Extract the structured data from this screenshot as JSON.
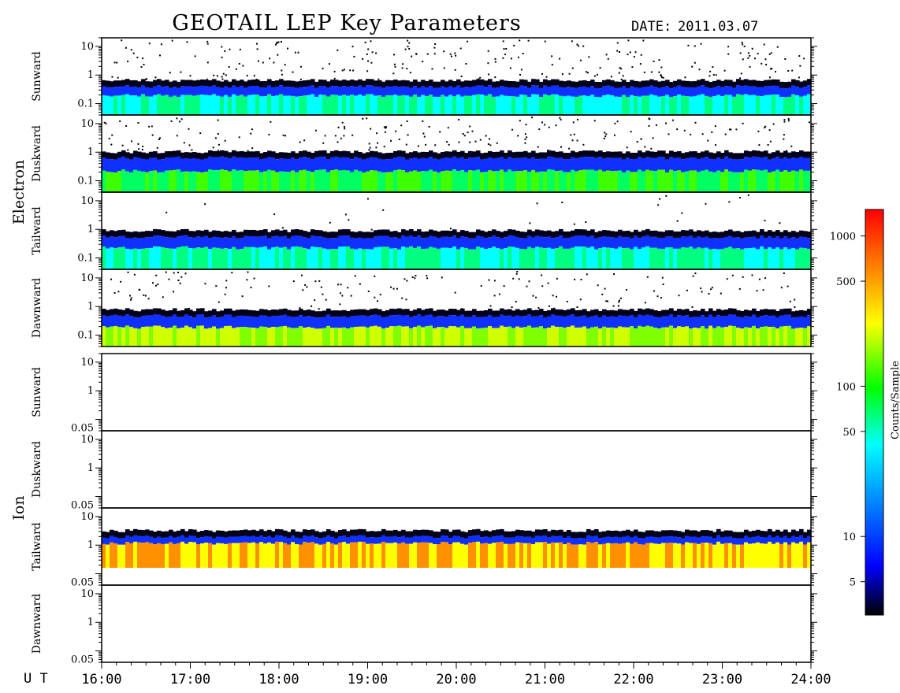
{
  "title": "GEOTAIL LEP Key Parameters",
  "date_label": "DATE:",
  "date_value": "2011.03.07",
  "colors": {
    "background": "#ffffff",
    "frame": "#000000",
    "scale": [
      "#000000",
      "#0000ff",
      "#00ffff",
      "#00ff00",
      "#ffff00",
      "#ff8000",
      "#ff0000"
    ]
  },
  "chart_data": {
    "type": "heatmap",
    "x_label": "U T",
    "x_tick_labels": [
      "16:00",
      "17:00",
      "18:00",
      "19:00",
      "20:00",
      "21:00",
      "22:00",
      "23:00",
      "24:00"
    ],
    "xlim": [
      "16:00",
      "24:00"
    ],
    "y_scale": "log",
    "groups": [
      {
        "name": "Electron",
        "ylim": [
          0.04,
          20
        ],
        "y_tick_labels": [
          "10",
          "1",
          "0.1"
        ],
        "panels": [
          {
            "name": "Sunward",
            "dominant_level": "cyan-green",
            "band_center": 0.12,
            "band_top": 0.5,
            "scatter_density": 0.09
          },
          {
            "name": "Duskward",
            "dominant_level": "green",
            "band_center": 0.1,
            "band_top": 0.8,
            "scatter_density": 0.07
          },
          {
            "name": "Tailward",
            "dominant_level": "cyan-green",
            "band_center": 0.12,
            "band_top": 0.7,
            "scatter_density": 0.01
          },
          {
            "name": "Dawnward",
            "dominant_level": "green-yellow",
            "band_center": 0.1,
            "band_top": 0.6,
            "scatter_density": 0.06
          }
        ]
      },
      {
        "name": "Ion",
        "ylim": [
          0.04,
          20
        ],
        "y_tick_labels": [
          "10",
          "1",
          "0.05"
        ],
        "panels": [
          {
            "name": "Sunward",
            "dominant_level": "none",
            "band_center": 0,
            "band_top": 0,
            "scatter_density": 0.0
          },
          {
            "name": "Duskward",
            "dominant_level": "none",
            "band_center": 0,
            "band_top": 0,
            "scatter_density": 0.0
          },
          {
            "name": "Tailward",
            "dominant_level": "yellow-orange",
            "band_center": 0.9,
            "band_top": 2.5,
            "scatter_density": 0.0
          },
          {
            "name": "Dawnward",
            "dominant_level": "none",
            "band_center": 0,
            "band_top": 0,
            "scatter_density": 0.0
          }
        ]
      }
    ],
    "colorbar": {
      "label": "Counts/Sample",
      "scale": "log",
      "range": [
        3,
        1500
      ],
      "tick_labels": [
        "1000",
        "500",
        "100",
        "50",
        "10",
        "5"
      ],
      "tick_values": [
        1000,
        500,
        100,
        50,
        10,
        5
      ]
    }
  }
}
